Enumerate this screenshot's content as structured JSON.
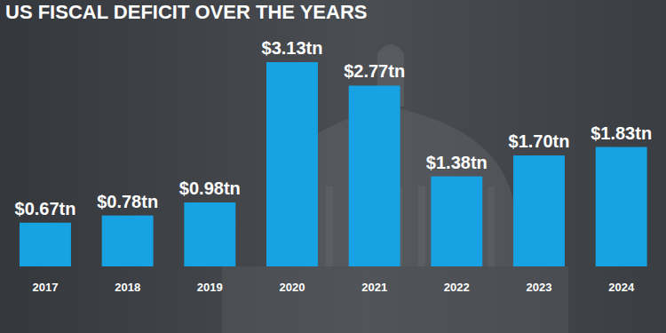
{
  "chart_data": {
    "type": "bar",
    "title": "US FISCAL DEFICIT OVER THE YEARS",
    "categories": [
      "2017",
      "2018",
      "2019",
      "2020",
      "2021",
      "2022",
      "2023",
      "2024"
    ],
    "values": [
      0.67,
      0.78,
      0.98,
      3.13,
      2.77,
      1.38,
      1.7,
      1.83
    ],
    "value_labels": [
      "$0.67tn",
      "$0.78tn",
      "$0.98tn",
      "$3.13tn",
      "$2.77tn",
      "$1.38tn",
      "$1.70tn",
      "$1.83tn"
    ],
    "color": "#17a3e3",
    "ylim": [
      0,
      3.13
    ],
    "grid": false,
    "data_labels": true,
    "tick_labels": "x"
  }
}
